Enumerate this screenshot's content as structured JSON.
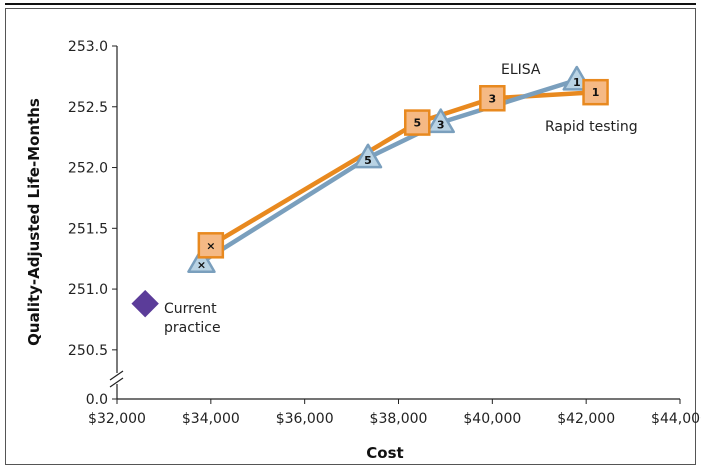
{
  "chart_data": {
    "type": "line",
    "title": "",
    "xlabel": "Cost",
    "ylabel": "Quality-Adjusted Life-Months",
    "xlim": [
      32000,
      44000
    ],
    "ylim": [
      250.4,
      253.0
    ],
    "x_ticks": [
      32000,
      34000,
      36000,
      38000,
      40000,
      42000,
      44000
    ],
    "x_tick_labels": [
      "$32,000",
      "$34,000",
      "$36,000",
      "$38,000",
      "$40,000",
      "$42,000",
      "$44,000"
    ],
    "y_ticks": [
      250.5,
      251.0,
      251.5,
      252.0,
      252.5,
      253.0
    ],
    "y_tick_labels": [
      "250.5",
      "251.0",
      "251.5",
      "252.0",
      "252.5",
      "253.0"
    ],
    "y_zero_label": "0.0",
    "axis_break": true,
    "grid": false,
    "series": [
      {
        "name": "ELISA",
        "color": "#7a9fbd",
        "marker": "triangle",
        "marker_fill": "#b9d3e4",
        "points": [
          {
            "x": 33800,
            "y": 251.22,
            "label": "×"
          },
          {
            "x": 37350,
            "y": 252.08,
            "label": "5"
          },
          {
            "x": 38900,
            "y": 252.37,
            "label": "3"
          },
          {
            "x": 41800,
            "y": 252.72,
            "label": "1"
          }
        ]
      },
      {
        "name": "Rapid testing",
        "color": "#e8891f",
        "marker": "square",
        "marker_fill": "#f5b985",
        "points": [
          {
            "x": 34000,
            "y": 251.36,
            "label": "×"
          },
          {
            "x": 38400,
            "y": 252.37,
            "label": "5"
          },
          {
            "x": 40000,
            "y": 252.57,
            "label": "3"
          },
          {
            "x": 42200,
            "y": 252.62,
            "label": "1"
          }
        ]
      },
      {
        "name": "Current practice",
        "color": "#5b3c99",
        "marker": "diamond",
        "points": [
          {
            "x": 32600,
            "y": 250.88,
            "label": ""
          }
        ]
      }
    ],
    "annotations": [
      {
        "text": "ELISA",
        "series": "ELISA"
      },
      {
        "text": "Rapid testing",
        "series": "Rapid testing"
      },
      {
        "text_lines": [
          "Current",
          "practice"
        ],
        "series": "Current practice"
      }
    ]
  }
}
